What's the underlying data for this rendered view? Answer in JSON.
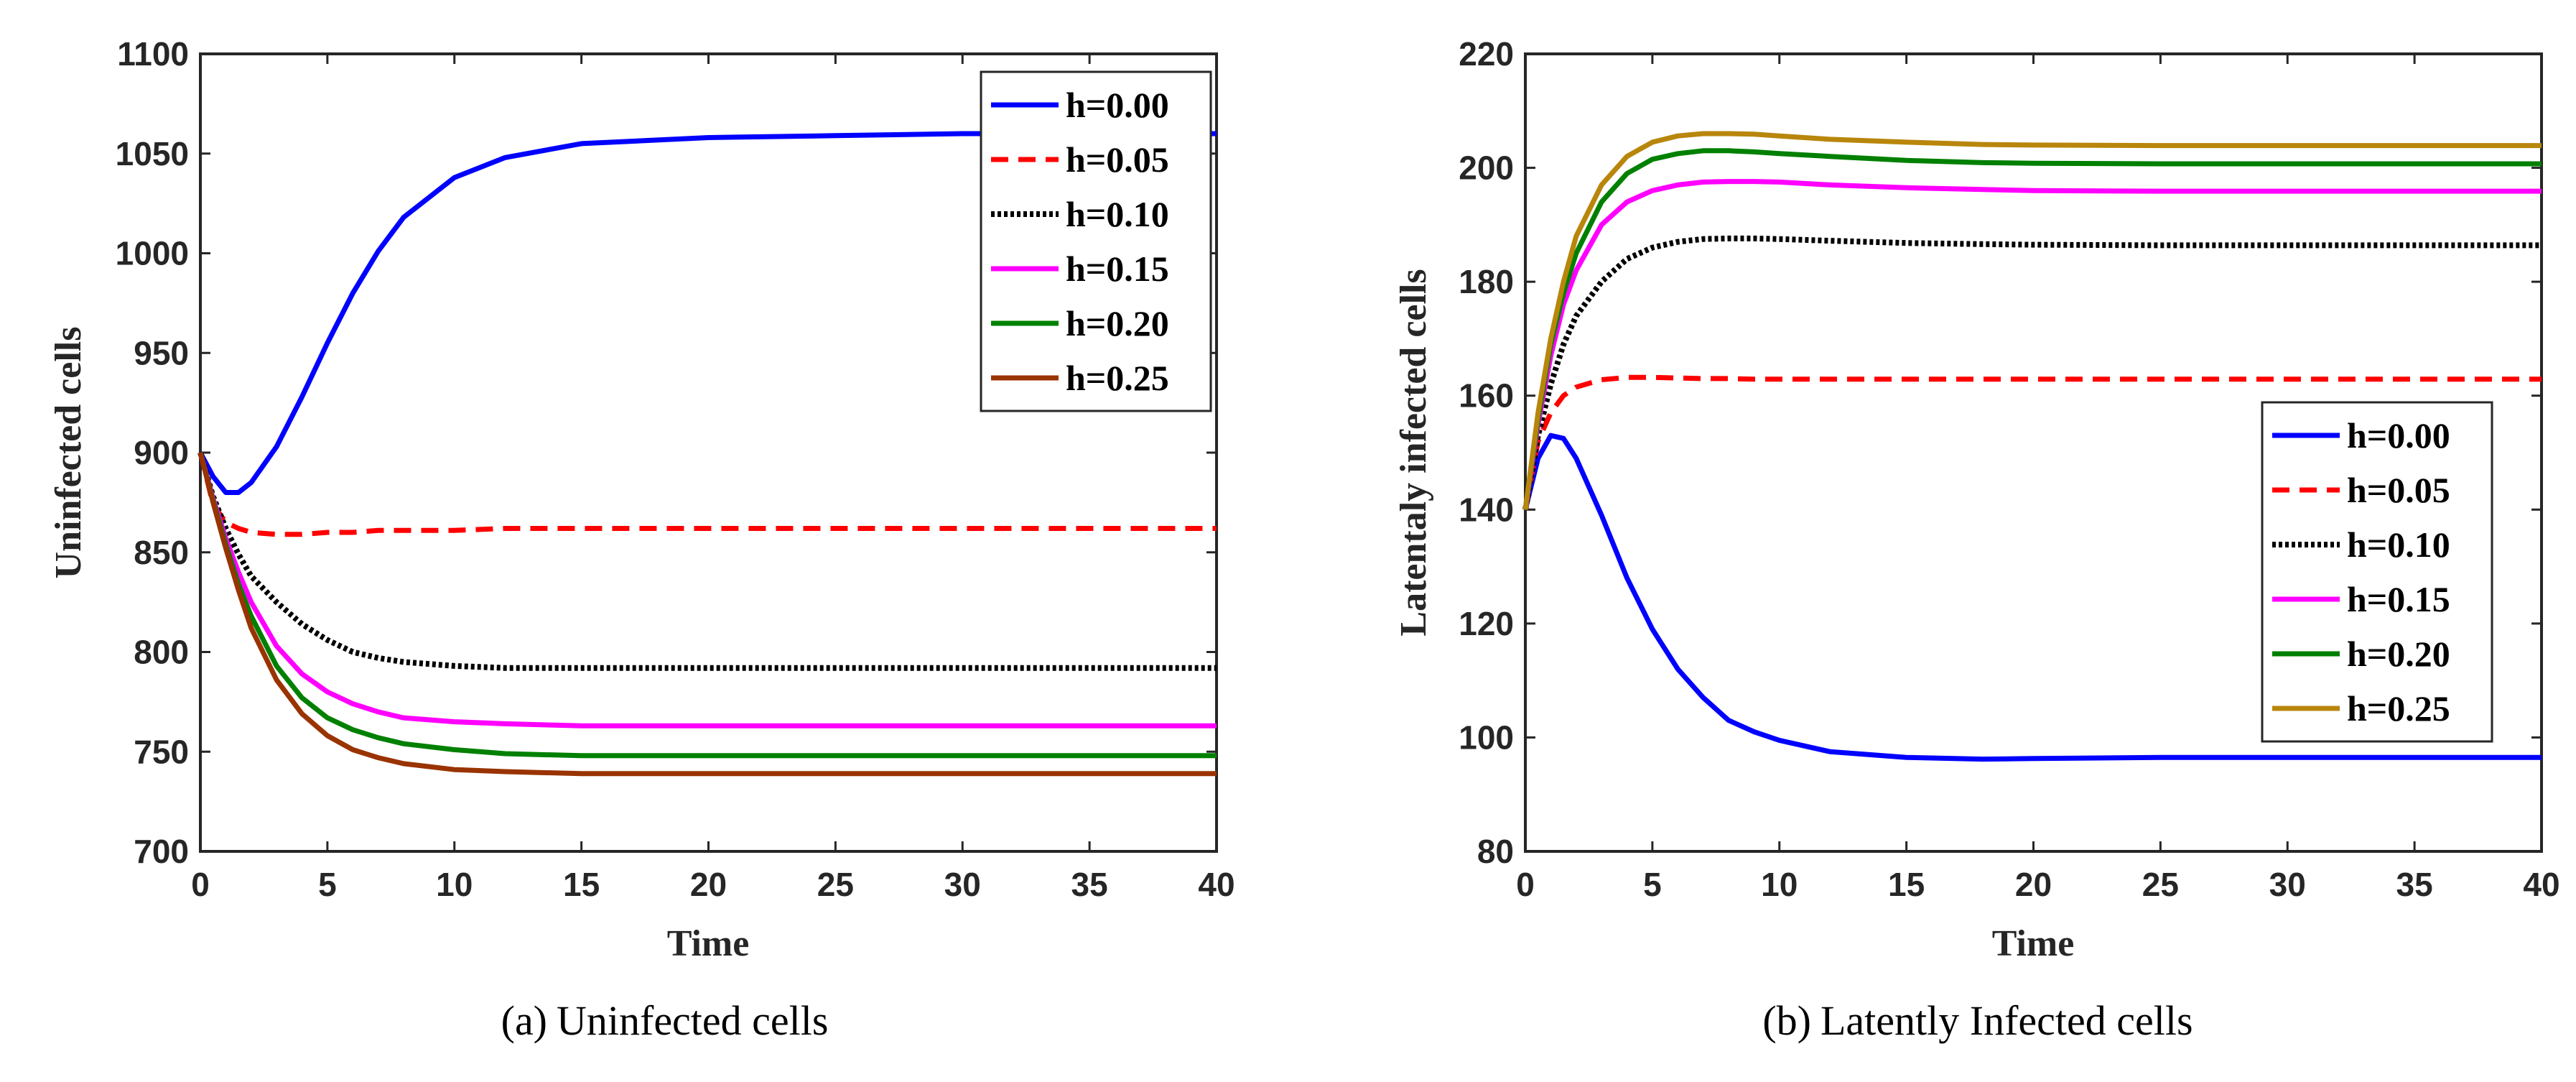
{
  "chart_data": [
    {
      "type": "line",
      "caption_label": "(a)",
      "caption_text": "Uninfected cells",
      "xlabel": "Time",
      "ylabel": "Uninfected cells",
      "xlim": [
        0,
        40
      ],
      "ylim": [
        700,
        1100
      ],
      "xticks": [
        0,
        5,
        10,
        15,
        20,
        25,
        30,
        35,
        40
      ],
      "yticks": [
        700,
        750,
        800,
        850,
        900,
        950,
        1000,
        1050,
        1100
      ],
      "legend_position": "top-right",
      "x": [
        0,
        0.5,
        1,
        1.5,
        2,
        3,
        4,
        5,
        6,
        7,
        8,
        10,
        12,
        15,
        20,
        25,
        30,
        35,
        40
      ],
      "series": [
        {
          "name": "h=0.00",
          "color": "#0000ff",
          "dash": "solid",
          "values": [
            900,
            888,
            880,
            880,
            885,
            903,
            928,
            955,
            980,
            1001,
            1018,
            1038,
            1048,
            1055,
            1058,
            1059,
            1060,
            1060,
            1060
          ]
        },
        {
          "name": "h=0.05",
          "color": "#ff0000",
          "dash": "dashed",
          "values": [
            900,
            874,
            865,
            862,
            860,
            859,
            859,
            860,
            860,
            861,
            861,
            861,
            862,
            862,
            862,
            862,
            862,
            862,
            862
          ]
        },
        {
          "name": "h=0.10",
          "color": "#000000",
          "dash": "dotted",
          "values": [
            900,
            878,
            862,
            849,
            838,
            825,
            814,
            806,
            800,
            797,
            795,
            793,
            792,
            792,
            792,
            792,
            792,
            792,
            792
          ]
        },
        {
          "name": "h=0.15",
          "color": "#ff00ff",
          "dash": "solid",
          "values": [
            900,
            877,
            857,
            840,
            825,
            803,
            789,
            780,
            774,
            770,
            767,
            765,
            764,
            763,
            763,
            763,
            763,
            763,
            763
          ]
        },
        {
          "name": "h=0.20",
          "color": "#008000",
          "dash": "solid",
          "values": [
            900,
            876,
            854,
            834,
            818,
            793,
            777,
            767,
            761,
            757,
            754,
            751,
            749,
            748,
            748,
            748,
            748,
            748,
            748
          ]
        },
        {
          "name": "h=0.25",
          "color": "#993300",
          "dash": "solid",
          "values": [
            900,
            875,
            852,
            831,
            812,
            786,
            769,
            758,
            751,
            747,
            744,
            741,
            740,
            739,
            739,
            739,
            739,
            739,
            739
          ]
        }
      ]
    },
    {
      "type": "line",
      "caption_label": "(b)",
      "caption_text": "Latently Infected cells",
      "xlabel": "Time",
      "ylabel": "Latentaly infected cells",
      "xlim": [
        0,
        40
      ],
      "ylim": [
        80,
        220
      ],
      "xticks": [
        0,
        5,
        10,
        15,
        20,
        25,
        30,
        35,
        40
      ],
      "yticks": [
        80,
        100,
        120,
        140,
        160,
        180,
        200,
        220
      ],
      "legend_position": "bottom-right",
      "x": [
        0,
        0.5,
        1,
        1.5,
        2,
        3,
        4,
        5,
        6,
        7,
        8,
        9,
        10,
        12,
        15,
        18,
        20,
        25,
        30,
        35,
        40
      ],
      "series": [
        {
          "name": "h=0.00",
          "color": "#0000ff",
          "dash": "solid",
          "values": [
            140,
            149,
            153,
            152.5,
            149,
            139,
            128,
            119,
            112,
            107,
            103,
            101,
            99.5,
            97.5,
            96.5,
            96.2,
            96.3,
            96.5,
            96.5,
            96.5,
            96.5
          ]
        },
        {
          "name": "h=0.05",
          "color": "#ff0000",
          "dash": "dashed",
          "values": [
            140,
            152,
            157,
            160,
            161.5,
            162.8,
            163.2,
            163.2,
            163.1,
            163,
            163,
            162.9,
            162.9,
            162.9,
            162.9,
            162.9,
            162.9,
            162.9,
            162.9,
            162.9,
            162.9
          ]
        },
        {
          "name": "h=0.10",
          "color": "#000000",
          "dash": "dotted",
          "values": [
            140,
            153,
            162,
            169,
            174,
            180,
            184,
            186,
            187,
            187.5,
            187.6,
            187.6,
            187.5,
            187.2,
            186.8,
            186.6,
            186.5,
            186.4,
            186.4,
            186.4,
            186.4
          ]
        },
        {
          "name": "h=0.15",
          "color": "#ff00ff",
          "dash": "solid",
          "values": [
            140,
            155,
            167,
            176,
            182,
            190,
            194,
            196,
            197,
            197.5,
            197.6,
            197.6,
            197.5,
            197,
            196.5,
            196.2,
            196,
            195.9,
            195.9,
            195.9,
            195.9
          ]
        },
        {
          "name": "h=0.20",
          "color": "#008000",
          "dash": "solid",
          "values": [
            140,
            156,
            169,
            178,
            185,
            194,
            199,
            201.5,
            202.5,
            203,
            203,
            202.8,
            202.5,
            202,
            201.3,
            200.9,
            200.8,
            200.7,
            200.7,
            200.7,
            200.7
          ]
        },
        {
          "name": "h=0.25",
          "color": "#b8860b",
          "dash": "solid",
          "values": [
            140,
            157,
            170,
            180,
            188,
            197,
            202,
            204.5,
            205.6,
            206,
            206,
            205.9,
            205.6,
            205,
            204.5,
            204.1,
            204,
            203.9,
            203.9,
            203.9,
            203.9
          ]
        }
      ]
    }
  ]
}
